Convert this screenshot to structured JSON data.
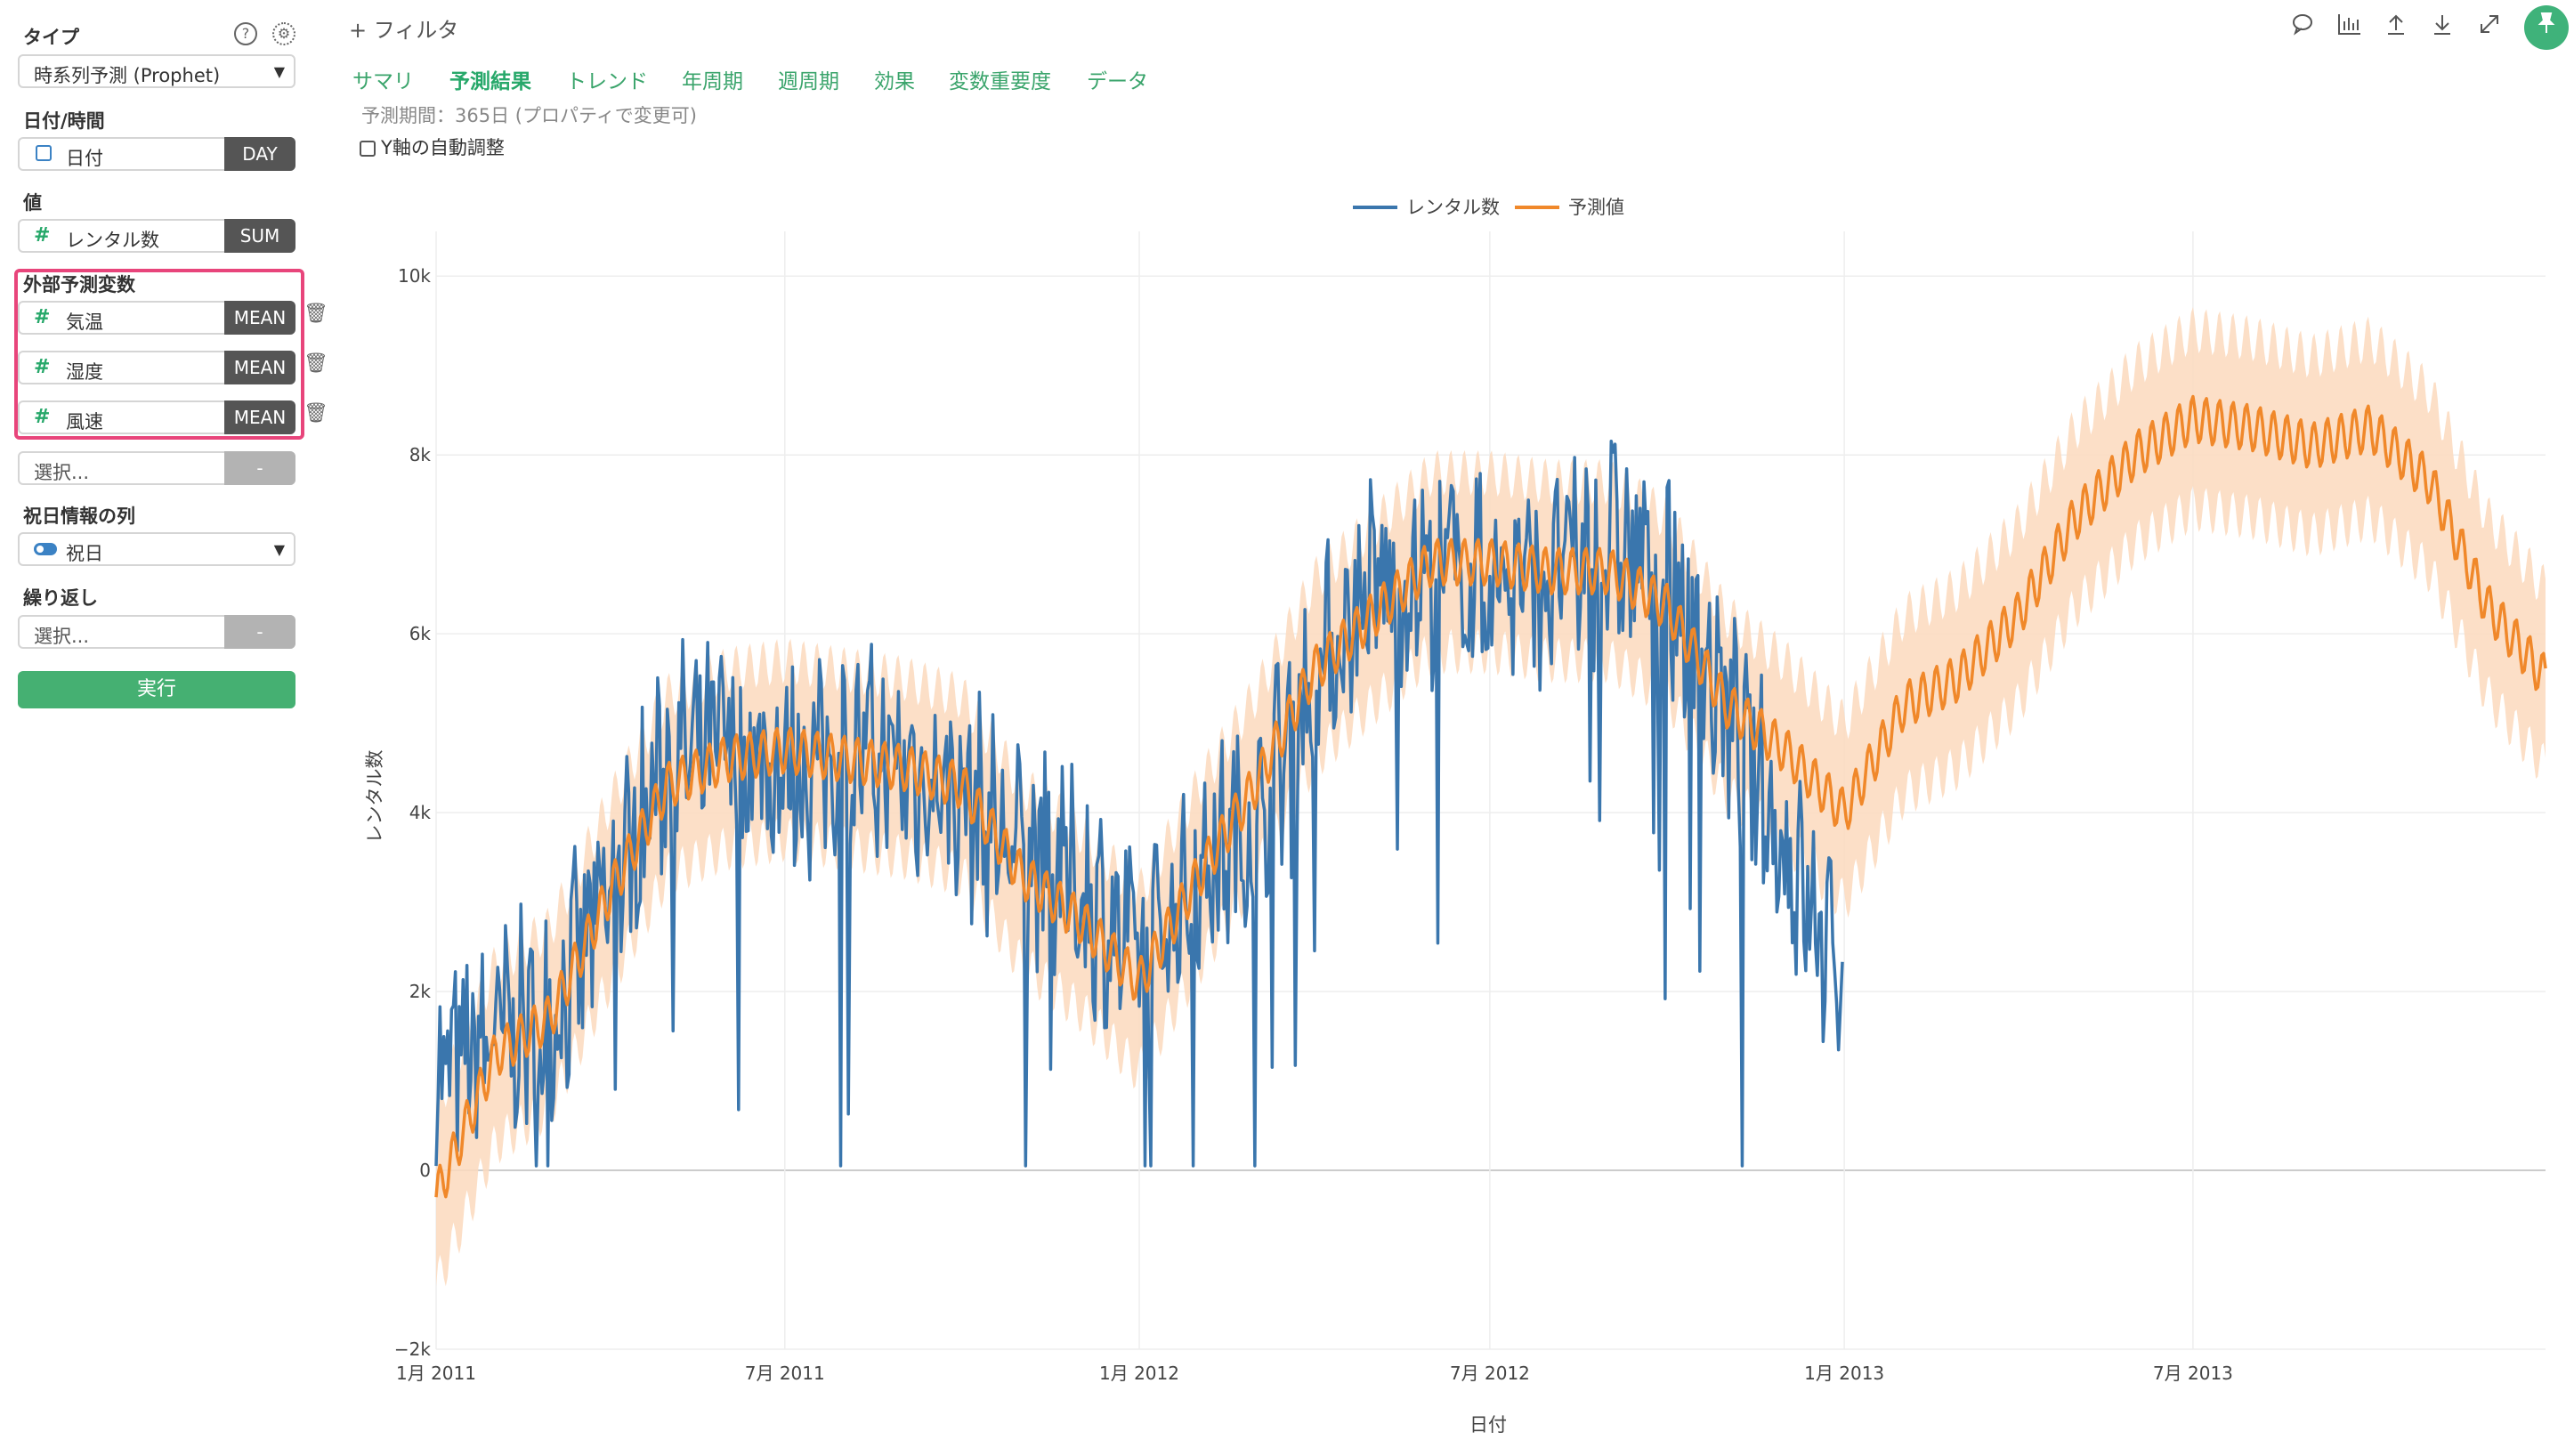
{
  "sidebar": {
    "type_label": "タイプ",
    "type_value": "時系列予測 (Prophet)",
    "date_label": "日付/時間",
    "date_field": "日付",
    "date_unit": "DAY",
    "value_label": "値",
    "value_field": "レンタル数",
    "value_agg": "SUM",
    "regressors_label": "外部予測変数",
    "regressors": [
      {
        "name": "気温",
        "agg": "MEAN"
      },
      {
        "name": "湿度",
        "agg": "MEAN"
      },
      {
        "name": "風速",
        "agg": "MEAN"
      }
    ],
    "select_placeholder": "選択...",
    "dash": "-",
    "holiday_label": "祝日情報の列",
    "holiday_value": "祝日",
    "repeat_label": "繰り返し",
    "repeat_placeholder": "選択...",
    "run_label": "実行"
  },
  "toolbar": {
    "filter_label": "+  フィルタ",
    "icons": [
      "comment-icon",
      "bar-chart-icon",
      "upload-icon",
      "download-icon",
      "expand-icon",
      "pin-icon"
    ]
  },
  "tabs": [
    "サマリ",
    "予測結果",
    "トレンド",
    "年周期",
    "週周期",
    "効果",
    "変数重要度",
    "データ"
  ],
  "active_tab": "予測結果",
  "period_note": "予測期間：365日 (プロパティで変更可)",
  "auto_y_label": "Y軸の自動調整",
  "chart_data": {
    "type": "line",
    "xlabel": "日付",
    "ylabel": "レンタル数",
    "ylim": [
      -2000,
      10500
    ],
    "x_range": [
      "2011-01-01",
      "2013-12-31"
    ],
    "y_ticks": [
      "−2k",
      "0",
      "2k",
      "4k",
      "6k",
      "8k",
      "10k"
    ],
    "x_ticks": [
      "1月 2011",
      "7月 2011",
      "1月 2012",
      "7月 2012",
      "1月 2013",
      "7月 2013"
    ],
    "legend": [
      "レンタル数",
      "予測値"
    ],
    "legend_position": "top-center",
    "colors": {
      "actual": "#3a76ad",
      "forecast": "#f0882a",
      "band": "#fbd9bd"
    },
    "series": [
      {
        "name": "レンタル数",
        "x": [
          "2011-01-01",
          "2011-02-01",
          "2011-03-01",
          "2011-04-01",
          "2011-05-01",
          "2011-06-01",
          "2011-07-01",
          "2011-08-01",
          "2011-09-01",
          "2011-10-01",
          "2011-11-01",
          "2011-12-01",
          "2012-01-01",
          "2012-02-01",
          "2012-03-01",
          "2012-04-01",
          "2012-05-01",
          "2012-06-01",
          "2012-07-01",
          "2012-08-01",
          "2012-09-01",
          "2012-10-01",
          "2012-11-01",
          "2012-12-01",
          "2012-12-31"
        ],
        "values": [
          1000,
          1500,
          1700,
          3000,
          4600,
          4700,
          4500,
          4600,
          4500,
          4200,
          3500,
          3200,
          2300,
          3300,
          3900,
          5600,
          6500,
          6700,
          6600,
          6600,
          7000,
          6700,
          5100,
          3600,
          2000
        ]
      },
      {
        "name": "予測値",
        "x": [
          "2011-01-01",
          "2011-02-01",
          "2011-03-01",
          "2011-04-01",
          "2011-05-01",
          "2011-06-01",
          "2011-07-01",
          "2011-08-01",
          "2011-09-01",
          "2011-10-01",
          "2011-11-01",
          "2011-12-01",
          "2012-01-01",
          "2012-02-01",
          "2012-03-01",
          "2012-04-01",
          "2012-05-01",
          "2012-06-01",
          "2012-07-01",
          "2012-08-01",
          "2012-09-01",
          "2012-10-01",
          "2012-11-01",
          "2012-12-01",
          "2013-01-01",
          "2013-02-01",
          "2013-03-01",
          "2013-04-01",
          "2013-05-01",
          "2013-06-01",
          "2013-07-01",
          "2013-08-01",
          "2013-09-01",
          "2013-10-01",
          "2013-11-01",
          "2013-12-01",
          "2013-12-31"
        ],
        "values": [
          -300,
          1300,
          1700,
          3100,
          4300,
          4600,
          4700,
          4600,
          4500,
          4300,
          3300,
          2800,
          2100,
          3300,
          4300,
          5600,
          6200,
          6800,
          6800,
          6700,
          6700,
          6300,
          5200,
          4700,
          4000,
          5200,
          5500,
          6200,
          7300,
          8000,
          8400,
          8300,
          8100,
          8300,
          7700,
          6300,
          5500
        ]
      }
    ],
    "band_halfwidth": 1000
  }
}
